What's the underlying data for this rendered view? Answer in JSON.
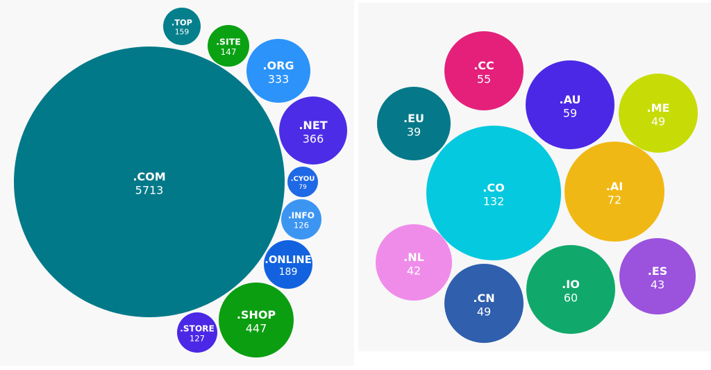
{
  "chart_data": [
    {
      "type": "bubble",
      "title": "",
      "items": [
        {
          "label": ".COM",
          "value": 5713,
          "color": "#027989"
        },
        {
          "label": ".TOP",
          "value": 159,
          "color": "#057f8c"
        },
        {
          "label": ".SITE",
          "value": 147,
          "color": "#0aa113"
        },
        {
          "label": ".ORG",
          "value": 333,
          "color": "#2b93fa"
        },
        {
          "label": ".NET",
          "value": 366,
          "color": "#4c2ce6"
        },
        {
          "label": ".CYOU",
          "value": 79,
          "color": "#1f68e6"
        },
        {
          "label": ".INFO",
          "value": 126,
          "color": "#3d95f2"
        },
        {
          "label": ".ONLINE",
          "value": 189,
          "color": "#1262df"
        },
        {
          "label": ".SHOP",
          "value": 447,
          "color": "#0b9e11"
        },
        {
          "label": ".STORE",
          "value": 127,
          "color": "#4a28e5"
        }
      ]
    },
    {
      "type": "bubble",
      "title": "",
      "items": [
        {
          "label": ".CC",
          "value": 55,
          "color": "#e4207b"
        },
        {
          "label": ".EU",
          "value": 39,
          "color": "#057989"
        },
        {
          "label": ".AU",
          "value": 59,
          "color": "#4b28e6"
        },
        {
          "label": ".ME",
          "value": 49,
          "color": "#c7dc06"
        },
        {
          "label": ".CO",
          "value": 132,
          "color": "#05c9df"
        },
        {
          "label": ".AI",
          "value": 72,
          "color": "#f0b814"
        },
        {
          "label": ".NL",
          "value": 42,
          "color": "#ef8cea"
        },
        {
          "label": ".IO",
          "value": 60,
          "color": "#10a96b"
        },
        {
          "label": ".ES",
          "value": 43,
          "color": "#9b52dd"
        },
        {
          "label": ".CN",
          "value": 49,
          "color": "#2f5fad"
        }
      ]
    }
  ]
}
